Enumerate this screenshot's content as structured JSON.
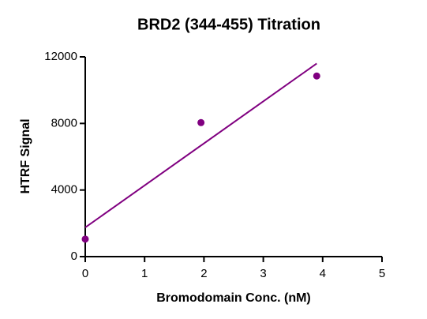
{
  "chart_data": {
    "type": "scatter",
    "title": "BRD2 (344-455) Titration",
    "xlabel": "Bromodomain Conc. (nM)",
    "ylabel": "HTRF Signal",
    "xlim": [
      0,
      5
    ],
    "xticks": [
      0,
      1,
      2,
      3,
      4,
      5
    ],
    "ylim": [
      0,
      12000
    ],
    "yticks": [
      0,
      4000,
      8000,
      12000
    ],
    "color": "#800080",
    "series": [
      {
        "type": "scatter",
        "x": [
          0,
          1.95,
          3.9
        ],
        "values": [
          1050,
          8050,
          10850
        ]
      },
      {
        "type": "line",
        "x": [
          0,
          3.9
        ],
        "values": [
          1750,
          11600
        ]
      }
    ]
  }
}
